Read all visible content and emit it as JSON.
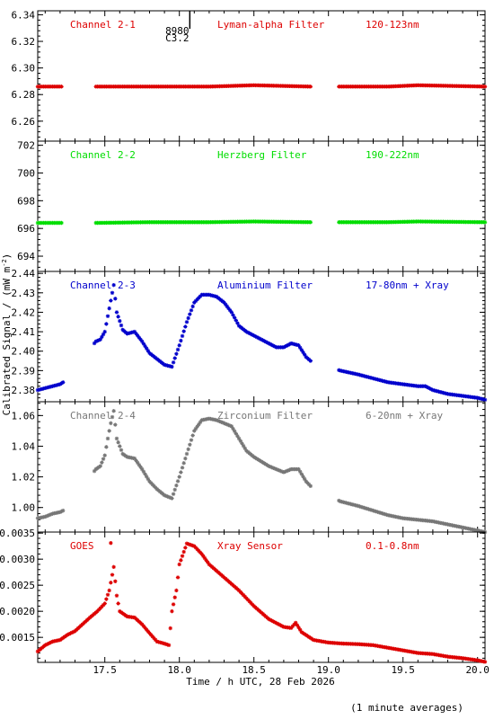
{
  "figure": {
    "xlabel": "Time / h UTC, 28 Feb 2026",
    "ylabel": "Calibrated Signal / (mW m",
    "ylabel_sup": "-2",
    "ylabel_end": ")",
    "footer": "(1 minute averages)",
    "marker_label_1": "8980",
    "marker_label_2": "C3.2",
    "marker_x": 18.07
  },
  "chart_data": [
    {
      "type": "scatter",
      "name": "Channel 2-1",
      "labels": [
        "Channel 2-1",
        "Lyman-alpha Filter",
        "120-123nm"
      ],
      "color": "#dd0000",
      "xlim": [
        17.05,
        20.05
      ],
      "ylim": [
        6.245,
        6.343
      ],
      "yticks": [
        6.26,
        6.28,
        6.3,
        6.32,
        6.34
      ],
      "ytick_labels": [
        "6.26",
        "6.28",
        "6.30",
        "6.32",
        "6.34"
      ],
      "points": [
        [
          17.05,
          6.286
        ],
        [
          17.2,
          6.286
        ],
        [
          17.45,
          6.286
        ],
        [
          17.8,
          6.286
        ],
        [
          18.2,
          6.286
        ],
        [
          18.5,
          6.287
        ],
        [
          18.88,
          6.286
        ],
        [
          19.08,
          6.286
        ],
        [
          19.4,
          6.286
        ],
        [
          19.6,
          6.287
        ],
        [
          20.05,
          6.286
        ]
      ],
      "gaps": [
        [
          17.22,
          17.44
        ],
        [
          18.89,
          19.07
        ]
      ]
    },
    {
      "type": "scatter",
      "name": "Channel 2-2",
      "labels": [
        "Channel 2-2",
        "Herzberg Filter",
        "190-222nm"
      ],
      "color": "#00dd00",
      "xlim": [
        17.05,
        20.05
      ],
      "ylim": [
        692.9,
        702.3
      ],
      "yticks": [
        694,
        696,
        698,
        700,
        702
      ],
      "ytick_labels": [
        "694",
        "696",
        "698",
        "700",
        "702"
      ],
      "points": [
        [
          17.05,
          696.4
        ],
        [
          17.2,
          696.4
        ],
        [
          17.45,
          696.4
        ],
        [
          17.8,
          696.45
        ],
        [
          18.2,
          696.45
        ],
        [
          18.5,
          696.5
        ],
        [
          18.88,
          696.45
        ],
        [
          19.08,
          696.45
        ],
        [
          19.4,
          696.45
        ],
        [
          19.6,
          696.5
        ],
        [
          20.05,
          696.45
        ]
      ],
      "gaps": [
        [
          17.22,
          17.44
        ],
        [
          18.89,
          19.07
        ]
      ]
    },
    {
      "type": "scatter",
      "name": "Channel 2-3",
      "labels": [
        "Channel 2-3",
        "Aluminium Filter",
        "17-80nm + Xray"
      ],
      "color": "#0000cc",
      "xlim": [
        17.05,
        20.05
      ],
      "ylim": [
        2.374,
        2.441
      ],
      "yticks": [
        2.38,
        2.39,
        2.4,
        2.41,
        2.42,
        2.43,
        2.44
      ],
      "ytick_labels": [
        "2.38",
        "2.39",
        "2.40",
        "2.41",
        "2.42",
        "2.43",
        "2.44"
      ],
      "points": [
        [
          17.05,
          2.38
        ],
        [
          17.1,
          2.381
        ],
        [
          17.15,
          2.382
        ],
        [
          17.2,
          2.383
        ],
        [
          17.22,
          2.384
        ],
        [
          17.44,
          2.405
        ],
        [
          17.47,
          2.406
        ],
        [
          17.5,
          2.41
        ],
        [
          17.52,
          2.418
        ],
        [
          17.54,
          2.426
        ],
        [
          17.56,
          2.434
        ],
        [
          17.58,
          2.42
        ],
        [
          17.62,
          2.411
        ],
        [
          17.65,
          2.409
        ],
        [
          17.7,
          2.41
        ],
        [
          17.75,
          2.405
        ],
        [
          17.8,
          2.399
        ],
        [
          17.85,
          2.396
        ],
        [
          17.9,
          2.393
        ],
        [
          17.95,
          2.392
        ],
        [
          18.0,
          2.403
        ],
        [
          18.05,
          2.415
        ],
        [
          18.1,
          2.425
        ],
        [
          18.15,
          2.429
        ],
        [
          18.2,
          2.429
        ],
        [
          18.25,
          2.428
        ],
        [
          18.3,
          2.425
        ],
        [
          18.35,
          2.42
        ],
        [
          18.4,
          2.413
        ],
        [
          18.45,
          2.41
        ],
        [
          18.5,
          2.408
        ],
        [
          18.55,
          2.406
        ],
        [
          18.6,
          2.404
        ],
        [
          18.65,
          2.402
        ],
        [
          18.7,
          2.402
        ],
        [
          18.75,
          2.404
        ],
        [
          18.8,
          2.403
        ],
        [
          18.85,
          2.397
        ],
        [
          18.88,
          2.395
        ],
        [
          19.08,
          2.39
        ],
        [
          19.2,
          2.388
        ],
        [
          19.3,
          2.386
        ],
        [
          19.4,
          2.384
        ],
        [
          19.5,
          2.383
        ],
        [
          19.6,
          2.382
        ],
        [
          19.65,
          2.382
        ],
        [
          19.7,
          2.38
        ],
        [
          19.8,
          2.378
        ],
        [
          19.9,
          2.377
        ],
        [
          20.0,
          2.376
        ],
        [
          20.05,
          2.375
        ]
      ],
      "gaps": [
        [
          17.23,
          17.43
        ],
        [
          18.89,
          19.07
        ]
      ]
    },
    {
      "type": "scatter",
      "name": "Channel 2-4",
      "labels": [
        "Channel 2-4",
        "Zirconium Filter",
        "6-20nm + Xray"
      ],
      "color": "#777777",
      "xlim": [
        17.05,
        20.05
      ],
      "ylim": [
        0.984,
        1.069
      ],
      "yticks": [
        1.0,
        1.02,
        1.04,
        1.06
      ],
      "ytick_labels": [
        "1.00",
        "1.02",
        "1.04",
        "1.06"
      ],
      "points": [
        [
          17.05,
          0.993
        ],
        [
          17.1,
          0.994
        ],
        [
          17.15,
          0.996
        ],
        [
          17.2,
          0.997
        ],
        [
          17.22,
          0.998
        ],
        [
          17.44,
          1.025
        ],
        [
          17.47,
          1.027
        ],
        [
          17.5,
          1.034
        ],
        [
          17.52,
          1.045
        ],
        [
          17.54,
          1.055
        ],
        [
          17.56,
          1.063
        ],
        [
          17.58,
          1.045
        ],
        [
          17.62,
          1.035
        ],
        [
          17.65,
          1.033
        ],
        [
          17.7,
          1.032
        ],
        [
          17.75,
          1.025
        ],
        [
          17.8,
          1.017
        ],
        [
          17.85,
          1.012
        ],
        [
          17.9,
          1.008
        ],
        [
          17.95,
          1.006
        ],
        [
          18.0,
          1.02
        ],
        [
          18.05,
          1.035
        ],
        [
          18.1,
          1.05
        ],
        [
          18.15,
          1.057
        ],
        [
          18.2,
          1.058
        ],
        [
          18.25,
          1.057
        ],
        [
          18.3,
          1.055
        ],
        [
          18.35,
          1.053
        ],
        [
          18.4,
          1.045
        ],
        [
          18.45,
          1.037
        ],
        [
          18.5,
          1.033
        ],
        [
          18.55,
          1.03
        ],
        [
          18.6,
          1.027
        ],
        [
          18.65,
          1.025
        ],
        [
          18.7,
          1.023
        ],
        [
          18.75,
          1.025
        ],
        [
          18.8,
          1.025
        ],
        [
          18.85,
          1.017
        ],
        [
          18.88,
          1.014
        ],
        [
          19.08,
          1.004
        ],
        [
          19.2,
          1.001
        ],
        [
          19.3,
          0.998
        ],
        [
          19.4,
          0.995
        ],
        [
          19.5,
          0.993
        ],
        [
          19.6,
          0.992
        ],
        [
          19.7,
          0.991
        ],
        [
          19.8,
          0.989
        ],
        [
          19.9,
          0.987
        ],
        [
          20.0,
          0.985
        ],
        [
          20.05,
          0.984
        ]
      ],
      "gaps": [
        [
          17.23,
          17.43
        ],
        [
          18.89,
          19.07
        ]
      ]
    },
    {
      "type": "scatter",
      "name": "GOES",
      "labels": [
        "GOES",
        "Xray Sensor",
        "0.1-0.8nm"
      ],
      "color": "#dd0000",
      "xlim": [
        17.05,
        20.05
      ],
      "ylim": [
        0.00102,
        0.00352
      ],
      "yticks": [
        0.0015,
        0.002,
        0.0025,
        0.003,
        0.0035
      ],
      "ytick_labels": [
        "0.0015",
        "0.0020",
        "0.0025",
        "0.0030",
        "0.0035"
      ],
      "points": [
        [
          17.05,
          0.00123
        ],
        [
          17.1,
          0.00135
        ],
        [
          17.15,
          0.00142
        ],
        [
          17.2,
          0.00145
        ],
        [
          17.25,
          0.00155
        ],
        [
          17.3,
          0.00162
        ],
        [
          17.35,
          0.00175
        ],
        [
          17.4,
          0.00188
        ],
        [
          17.45,
          0.002
        ],
        [
          17.5,
          0.00215
        ],
        [
          17.53,
          0.0024
        ],
        [
          17.56,
          0.00285
        ],
        [
          17.58,
          0.0023
        ],
        [
          17.6,
          0.002
        ],
        [
          17.65,
          0.0019
        ],
        [
          17.7,
          0.00188
        ],
        [
          17.75,
          0.00175
        ],
        [
          17.8,
          0.00158
        ],
        [
          17.85,
          0.00142
        ],
        [
          17.9,
          0.00138
        ],
        [
          17.93,
          0.00135
        ],
        [
          17.95,
          0.002
        ],
        [
          17.98,
          0.0024
        ],
        [
          18.0,
          0.0029
        ],
        [
          18.05,
          0.0033
        ],
        [
          18.1,
          0.00325
        ],
        [
          18.15,
          0.0031
        ],
        [
          18.2,
          0.0029
        ],
        [
          18.3,
          0.00265
        ],
        [
          18.4,
          0.0024
        ],
        [
          18.5,
          0.0021
        ],
        [
          18.6,
          0.00185
        ],
        [
          18.7,
          0.0017
        ],
        [
          18.75,
          0.00168
        ],
        [
          18.78,
          0.00178
        ],
        [
          18.82,
          0.0016
        ],
        [
          18.9,
          0.00145
        ],
        [
          19.0,
          0.0014
        ],
        [
          19.1,
          0.00138
        ],
        [
          19.2,
          0.00137
        ],
        [
          19.3,
          0.00135
        ],
        [
          19.4,
          0.0013
        ],
        [
          19.5,
          0.00125
        ],
        [
          19.6,
          0.0012
        ],
        [
          19.7,
          0.00118
        ],
        [
          19.8,
          0.00113
        ],
        [
          19.9,
          0.0011
        ],
        [
          20.0,
          0.00106
        ],
        [
          20.05,
          0.00103
        ]
      ],
      "outliers": [
        [
          17.54,
          0.00331
        ]
      ],
      "gaps": []
    }
  ],
  "xaxis": {
    "xlim": [
      17.05,
      20.05
    ],
    "ticks": [
      17.5,
      18.0,
      18.5,
      19.0,
      19.5,
      20.0
    ],
    "tick_labels": [
      "17.5",
      "18.0",
      "18.5",
      "19.0",
      "19.5",
      "20.0"
    ]
  }
}
